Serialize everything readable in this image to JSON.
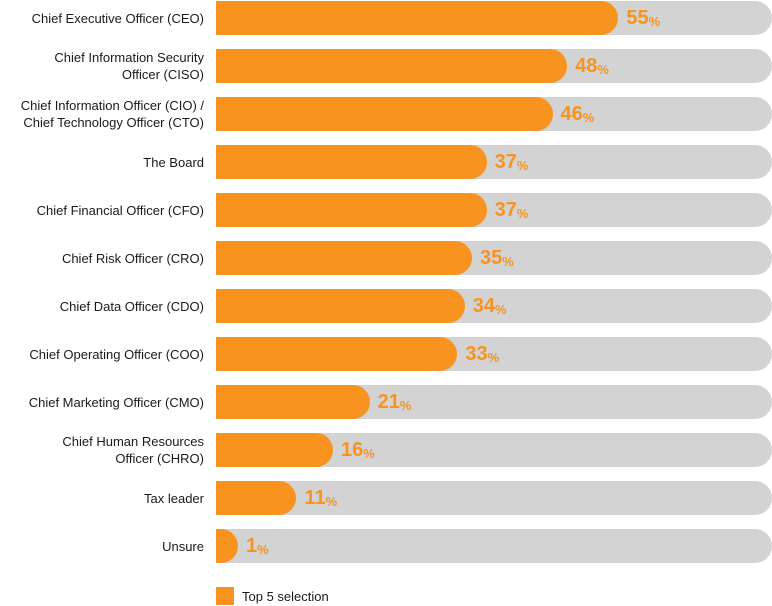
{
  "chart_data": {
    "type": "bar",
    "orientation": "horizontal",
    "categories": [
      "Chief Executive Officer (CEO)",
      "Chief Information Security Officer (CISO)",
      "Chief Information Officer (CIO) / Chief Technology Officer (CTO)",
      "The Board",
      "Chief Financial Officer (CFO)",
      "Chief Risk Officer (CRO)",
      "Chief Data Officer (CDO)",
      "Chief Operating Officer (COO)",
      "Chief Marketing Officer (CMO)",
      "Chief Human Resources Officer (CHRO)",
      "Tax leader",
      "Unsure"
    ],
    "series": [
      {
        "name": "Top 5 selection",
        "values": [
          55,
          48,
          46,
          37,
          37,
          35,
          34,
          33,
          21,
          16,
          11,
          1
        ]
      }
    ],
    "value_suffix": "%",
    "xlim": [
      0,
      76
    ],
    "legend": "bottom-left",
    "grid": false,
    "colors": {
      "bar": "#f7931e",
      "track": "#d3d3d3",
      "value_label": "#f7931e"
    }
  },
  "legend": {
    "label": "Top 5 selection"
  }
}
